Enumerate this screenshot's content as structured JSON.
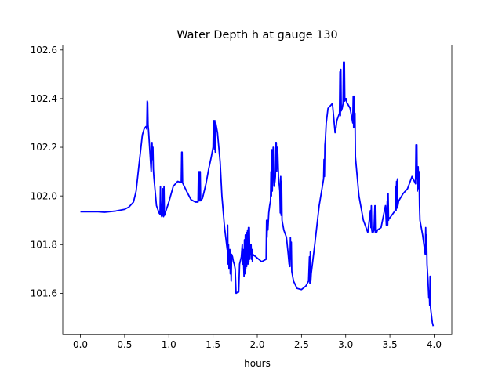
{
  "chart_data": {
    "type": "line",
    "title": "Water Depth h at gauge 130",
    "xlabel": "hours",
    "ylabel": "",
    "xlim": [
      -0.2,
      4.2
    ],
    "ylim": [
      101.43,
      102.62
    ],
    "x_ticks": [
      0.0,
      0.5,
      1.0,
      1.5,
      2.0,
      2.5,
      3.0,
      3.5,
      4.0
    ],
    "x_tick_labels": [
      "0.0",
      "0.5",
      "1.0",
      "1.5",
      "2.0",
      "2.5",
      "3.0",
      "3.5",
      "4.0"
    ],
    "y_ticks": [
      101.6,
      101.8,
      102.0,
      102.2,
      102.4,
      102.6
    ],
    "y_tick_labels": [
      "101.6",
      "101.8",
      "102.0",
      "102.2",
      "102.4",
      "102.6"
    ],
    "grid": false,
    "legend": "none",
    "series": [
      {
        "color": "#0000ff",
        "x": [
          0.0,
          0.2,
          0.27,
          0.4,
          0.5,
          0.55,
          0.6,
          0.63,
          0.66,
          0.7,
          0.72,
          0.74,
          0.75,
          0.755,
          0.76,
          0.765,
          0.77,
          0.8,
          0.81,
          0.815,
          0.82,
          0.825,
          0.83,
          0.86,
          0.89,
          0.9,
          0.905,
          0.91,
          0.915,
          0.92,
          0.93,
          0.935,
          0.94,
          0.945,
          0.95,
          1.0,
          1.05,
          1.1,
          1.14,
          1.145,
          1.15,
          1.155,
          1.16,
          1.2,
          1.25,
          1.3,
          1.33,
          1.335,
          1.34,
          1.345,
          1.35,
          1.355,
          1.36,
          1.38,
          1.42,
          1.45,
          1.48,
          1.5,
          1.505,
          1.51,
          1.515,
          1.52,
          1.525,
          1.53,
          1.55,
          1.58,
          1.6,
          1.63,
          1.66,
          1.665,
          1.67,
          1.675,
          1.68,
          1.69,
          1.695,
          1.7,
          1.705,
          1.71,
          1.72,
          1.73,
          1.74,
          1.75,
          1.76,
          1.78,
          1.79,
          1.8,
          1.82,
          1.83,
          1.835,
          1.84,
          1.85,
          1.855,
          1.86,
          1.865,
          1.87,
          1.875,
          1.88,
          1.89,
          1.895,
          1.9,
          1.905,
          1.91,
          1.915,
          1.92,
          1.925,
          1.93,
          1.935,
          1.94,
          1.945,
          1.95,
          2.05,
          2.1,
          2.105,
          2.11,
          2.115,
          2.12,
          2.13,
          2.14,
          2.15,
          2.155,
          2.16,
          2.165,
          2.17,
          2.18,
          2.19,
          2.2,
          2.205,
          2.21,
          2.215,
          2.22,
          2.23,
          2.24,
          2.25,
          2.255,
          2.26,
          2.265,
          2.27,
          2.275,
          2.28,
          2.3,
          2.33,
          2.35,
          2.36,
          2.37,
          2.375,
          2.38,
          2.385,
          2.39,
          2.41,
          2.45,
          2.5,
          2.55,
          2.58,
          2.59,
          2.595,
          2.6,
          2.605,
          2.61,
          2.65,
          2.7,
          2.75,
          2.755,
          2.76,
          2.765,
          2.77,
          2.78,
          2.8,
          2.85,
          2.88,
          2.89,
          2.9,
          2.93,
          2.935,
          2.94,
          2.945,
          2.95,
          2.96,
          2.97,
          2.975,
          2.98,
          2.985,
          2.99,
          3.0,
          3.005,
          3.01,
          3.015,
          3.02,
          3.05,
          3.08,
          3.085,
          3.09,
          3.095,
          3.1,
          3.105,
          3.11,
          3.15,
          3.2,
          3.25,
          3.28,
          3.285,
          3.29,
          3.295,
          3.3,
          3.31,
          3.32,
          3.33,
          3.335,
          3.34,
          3.345,
          3.35,
          3.36,
          3.4,
          3.45,
          3.46,
          3.47,
          3.475,
          3.48,
          3.485,
          3.49,
          3.5,
          3.52,
          3.56,
          3.565,
          3.57,
          3.575,
          3.58,
          3.585,
          3.59,
          3.6,
          3.65,
          3.7,
          3.75,
          3.79,
          3.795,
          3.8,
          3.805,
          3.81,
          3.815,
          3.82,
          3.825,
          3.83,
          3.835,
          3.84,
          3.87,
          3.9,
          3.905,
          3.91,
          3.915,
          3.92,
          3.93,
          3.94,
          3.945,
          3.95,
          3.955,
          3.96,
          3.97,
          3.98,
          3.99
        ],
        "y": [
          101.935,
          101.935,
          101.933,
          101.938,
          101.945,
          101.955,
          101.975,
          102.02,
          102.12,
          102.25,
          102.275,
          102.285,
          102.275,
          102.39,
          102.385,
          102.29,
          102.27,
          102.1,
          102.22,
          102.15,
          102.2,
          102.11,
          102.08,
          101.96,
          101.93,
          101.925,
          102.04,
          101.93,
          101.92,
          101.915,
          102.03,
          101.92,
          101.915,
          102.04,
          101.92,
          101.975,
          102.04,
          102.06,
          102.055,
          102.18,
          102.18,
          102.055,
          102.05,
          102.02,
          101.985,
          101.975,
          101.975,
          102.1,
          101.98,
          102.1,
          101.98,
          102.1,
          101.98,
          101.99,
          102.05,
          102.11,
          102.16,
          102.2,
          102.31,
          102.3,
          102.19,
          102.31,
          102.18,
          102.3,
          102.26,
          102.14,
          102.0,
          101.87,
          101.78,
          101.88,
          101.72,
          101.8,
          101.7,
          101.78,
          101.68,
          101.76,
          101.65,
          101.76,
          101.75,
          101.73,
          101.72,
          101.7,
          101.6,
          101.605,
          101.605,
          101.72,
          101.75,
          101.8,
          101.72,
          101.78,
          101.67,
          101.82,
          101.68,
          101.84,
          101.7,
          101.85,
          101.71,
          101.86,
          101.72,
          101.87,
          101.73,
          101.87,
          101.74,
          101.8,
          101.76,
          101.8,
          101.74,
          101.78,
          101.73,
          101.76,
          101.73,
          101.74,
          101.9,
          101.83,
          101.9,
          101.86,
          101.93,
          101.96,
          101.98,
          102.1,
          102.0,
          102.19,
          102.02,
          102.2,
          102.04,
          102.06,
          102.08,
          102.22,
          102.22,
          102.1,
          102.2,
          102.08,
          102.04,
          102.02,
          101.93,
          102.08,
          101.92,
          102.06,
          101.9,
          101.86,
          101.83,
          101.76,
          101.72,
          101.71,
          101.83,
          101.74,
          101.81,
          101.69,
          101.65,
          101.62,
          101.615,
          101.63,
          101.65,
          101.75,
          101.64,
          101.77,
          101.65,
          101.68,
          101.8,
          101.96,
          102.07,
          102.15,
          102.08,
          102.21,
          102.23,
          102.3,
          102.36,
          102.38,
          102.26,
          102.28,
          102.31,
          102.34,
          102.51,
          102.33,
          102.52,
          102.35,
          102.36,
          102.38,
          102.55,
          102.39,
          102.55,
          102.39,
          102.4,
          102.4,
          102.39,
          102.38,
          102.38,
          102.36,
          102.3,
          102.41,
          102.28,
          102.41,
          102.28,
          102.34,
          102.16,
          102.0,
          101.9,
          101.85,
          101.94,
          101.87,
          101.96,
          101.86,
          101.85,
          101.85,
          101.86,
          101.96,
          101.85,
          101.96,
          101.85,
          101.85,
          101.86,
          101.87,
          101.96,
          101.88,
          101.98,
          101.88,
          102.01,
          101.9,
          101.91,
          101.91,
          101.92,
          101.94,
          102.04,
          101.94,
          102.06,
          101.95,
          102.07,
          101.96,
          101.98,
          102.01,
          102.03,
          102.08,
          102.05,
          102.21,
          102.07,
          102.21,
          102.02,
          102.06,
          102.12,
          102.03,
          102.1,
          101.96,
          101.9,
          101.84,
          101.76,
          101.87,
          101.76,
          101.84,
          101.72,
          101.66,
          101.58,
          101.61,
          101.55,
          101.67,
          101.54,
          101.51,
          101.48,
          101.465
        ]
      }
    ]
  }
}
